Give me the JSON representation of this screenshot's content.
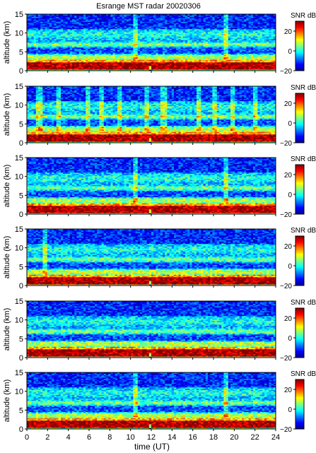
{
  "figure": {
    "title": "Esrange MST radar 20020306",
    "xlabel": "time (UT)",
    "ylabel": "altitude (km)"
  },
  "colorbar": {
    "label": "SNR dB",
    "ticks": [
      "20",
      "0",
      "−20"
    ],
    "colormap": "jet"
  },
  "chart_data": {
    "type": "heatmap",
    "title": "Esrange MST radar 20020306",
    "xlabel": "time (UT)",
    "ylabel": "altitude (km)",
    "xlim": [
      0,
      24
    ],
    "ylim": [
      0,
      15
    ],
    "xticks": [
      0,
      2,
      4,
      6,
      8,
      10,
      12,
      14,
      16,
      18,
      20,
      22,
      24
    ],
    "yticks": [
      0,
      5,
      10,
      15
    ],
    "clim": [
      -20,
      30
    ],
    "colorbar_label": "SNR dB",
    "colorbar_ticks": [
      -20,
      0,
      20
    ],
    "panels": [
      {
        "index": 1,
        "strong_near_ground_km": [
          0,
          2.5
        ],
        "layers_km": [
          3.8,
          7.0,
          9.5
        ],
        "vertical_streaks_ut": [
          10.4,
          19.3
        ]
      },
      {
        "index": 2,
        "strong_near_ground_km": [
          0,
          2.5
        ],
        "layers_km": [
          3.8,
          7.0,
          9.5
        ],
        "vertical_streaks_ut": [
          1.2,
          3.0,
          5.8,
          7.2,
          9.0,
          11.5,
          13.2,
          16.5,
          18.2,
          19.8,
          22.0
        ]
      },
      {
        "index": 3,
        "strong_near_ground_km": [
          0,
          2.5
        ],
        "layers_km": [
          3.8,
          7.0,
          9.5
        ],
        "vertical_streaks_ut": [
          10.4,
          19.3
        ]
      },
      {
        "index": 4,
        "strong_near_ground_km": [
          0,
          2.5
        ],
        "layers_km": [
          3.8,
          7.0,
          9.5
        ],
        "vertical_streaks_ut": [
          1.8
        ]
      },
      {
        "index": 5,
        "strong_near_ground_km": [
          0,
          2.5
        ],
        "layers_km": [
          3.8,
          7.0,
          9.5
        ],
        "vertical_streaks_ut": []
      },
      {
        "index": 6,
        "strong_near_ground_km": [
          0,
          2.5
        ],
        "layers_km": [
          3.8,
          7.0,
          9.5
        ],
        "vertical_streaks_ut": [
          10.4,
          19.3
        ]
      }
    ]
  }
}
